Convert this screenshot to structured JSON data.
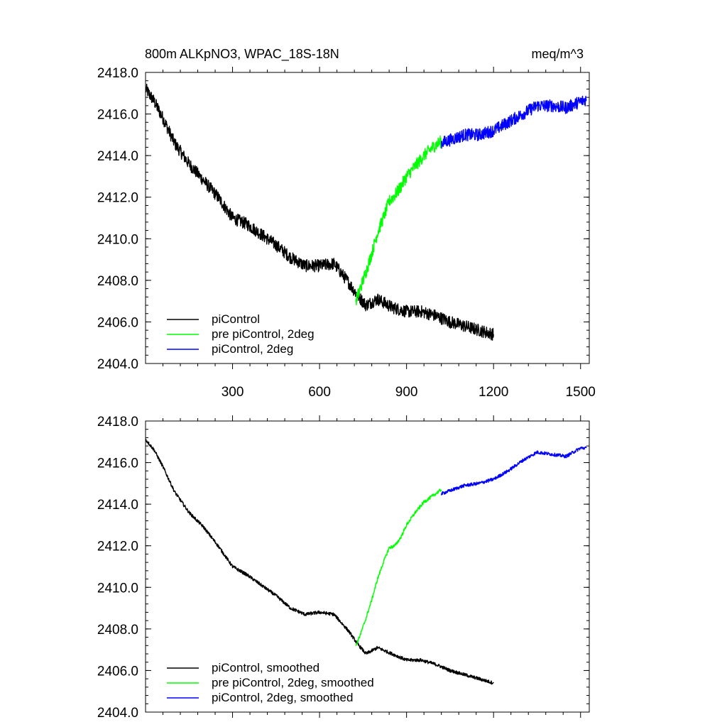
{
  "chart_data": [
    {
      "type": "line",
      "title": "800m ALKpNO3, WPAC_18S-18N",
      "units": "meq/m^3",
      "xlim": [
        0,
        1530
      ],
      "ylim": [
        2404.0,
        2418.0
      ],
      "xticks": [
        300,
        600,
        900,
        1200,
        1500
      ],
      "yticks": [
        "2404.0",
        "2406.0",
        "2408.0",
        "2410.0",
        "2412.0",
        "2414.0",
        "2416.0",
        "2418.0"
      ],
      "show_x_tick_labels": true,
      "legend_placement": "bottom-left",
      "noise": 0.3,
      "series": [
        {
          "name": "piControl",
          "color": "#000000",
          "x": [
            1,
            30,
            60,
            100,
            150,
            200,
            250,
            300,
            350,
            400,
            450,
            500,
            550,
            600,
            650,
            700,
            730,
            760,
            800,
            850,
            900,
            950,
            1000,
            1050,
            1100,
            1150,
            1200
          ],
          "y": [
            2417.2,
            2416.6,
            2415.8,
            2414.6,
            2413.6,
            2412.8,
            2412.0,
            2411.0,
            2410.7,
            2410.2,
            2409.7,
            2409.1,
            2408.7,
            2408.7,
            2408.8,
            2407.9,
            2407.3,
            2406.8,
            2407.1,
            2406.7,
            2406.5,
            2406.5,
            2406.3,
            2406.0,
            2405.8,
            2405.6,
            2405.4
          ]
        },
        {
          "name": "pre piControl, 2deg",
          "color": "#00ff00",
          "x": [
            725,
            740,
            760,
            780,
            800,
            820,
            840,
            860,
            880,
            900,
            930,
            960,
            990,
            1020
          ],
          "y": [
            2407.0,
            2407.6,
            2408.4,
            2409.3,
            2410.3,
            2411.0,
            2411.8,
            2412.1,
            2412.5,
            2413.0,
            2413.5,
            2414.0,
            2414.4,
            2414.7
          ]
        },
        {
          "name": "piControl, 2deg",
          "color": "#0000ff",
          "x": [
            1020,
            1060,
            1100,
            1150,
            1200,
            1250,
            1300,
            1350,
            1400,
            1450,
            1500,
            1520
          ],
          "y": [
            2414.6,
            2414.8,
            2415.0,
            2415.0,
            2415.2,
            2415.6,
            2416.0,
            2416.4,
            2416.4,
            2416.3,
            2416.6,
            2416.7
          ]
        }
      ]
    },
    {
      "type": "line",
      "title": "",
      "units": "",
      "xlim": [
        0,
        1530
      ],
      "ylim": [
        2404.0,
        2418.0
      ],
      "xticks": [
        300,
        600,
        900,
        1200,
        1500
      ],
      "yticks": [
        "2404.0",
        "2406.0",
        "2408.0",
        "2410.0",
        "2412.0",
        "2414.0",
        "2416.0",
        "2418.0"
      ],
      "show_x_tick_labels": false,
      "legend_placement": "bottom-left",
      "noise": 0.08,
      "series": [
        {
          "name": "piControl, smoothed",
          "color": "#000000",
          "x": [
            1,
            30,
            60,
            100,
            150,
            200,
            250,
            300,
            350,
            400,
            450,
            500,
            550,
            600,
            650,
            700,
            730,
            760,
            800,
            850,
            900,
            950,
            1000,
            1050,
            1100,
            1150,
            1200
          ],
          "y": [
            2417.1,
            2416.6,
            2415.8,
            2414.6,
            2413.6,
            2412.9,
            2412.0,
            2411.0,
            2410.6,
            2410.1,
            2409.6,
            2409.0,
            2408.7,
            2408.8,
            2408.7,
            2407.9,
            2407.3,
            2406.8,
            2407.1,
            2406.8,
            2406.5,
            2406.5,
            2406.3,
            2406.0,
            2405.8,
            2405.6,
            2405.4
          ]
        },
        {
          "name": "pre piControl, 2deg, smoothed",
          "color": "#00ff00",
          "x": [
            725,
            740,
            760,
            780,
            800,
            820,
            840,
            860,
            880,
            900,
            930,
            960,
            990,
            1020
          ],
          "y": [
            2407.2,
            2407.7,
            2408.5,
            2409.4,
            2410.4,
            2411.2,
            2411.9,
            2412.0,
            2412.4,
            2413.0,
            2413.6,
            2414.1,
            2414.4,
            2414.7
          ]
        },
        {
          "name": "piControl, 2deg, smoothed",
          "color": "#0000ff",
          "x": [
            1020,
            1060,
            1100,
            1150,
            1200,
            1250,
            1300,
            1350,
            1400,
            1450,
            1500,
            1520
          ],
          "y": [
            2414.5,
            2414.7,
            2414.9,
            2415.0,
            2415.2,
            2415.6,
            2416.1,
            2416.5,
            2416.4,
            2416.3,
            2416.7,
            2416.7
          ]
        }
      ]
    }
  ]
}
